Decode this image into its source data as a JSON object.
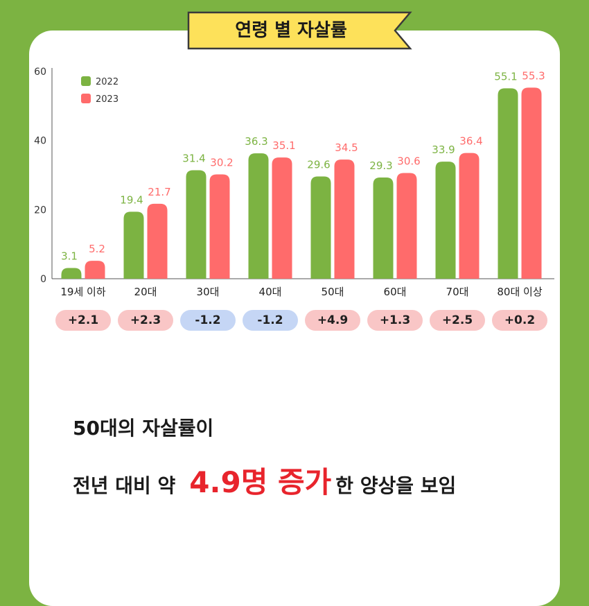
{
  "title": "연령 별 자살률",
  "chart_data": {
    "type": "bar",
    "categories": [
      "19세 이하",
      "20대",
      "30대",
      "40대",
      "50대",
      "60대",
      "70대",
      "80대 이상"
    ],
    "series": [
      {
        "name": "2022",
        "color": "#7cb342",
        "values": [
          3.1,
          19.4,
          31.4,
          36.3,
          29.6,
          29.3,
          33.9,
          55.1
        ]
      },
      {
        "name": "2023",
        "color": "#ff6b6b",
        "values": [
          5.2,
          21.7,
          30.2,
          35.1,
          34.5,
          30.6,
          36.4,
          55.3
        ]
      }
    ],
    "changes": [
      "+2.1",
      "+2.3",
      "-1.2",
      "-1.2",
      "+4.9",
      "+1.3",
      "+2.5",
      "+0.2"
    ],
    "change_colors": {
      "increase": "#f9c6c6",
      "decrease": "#c5d6f5"
    },
    "yticks": [
      "0",
      "20",
      "40",
      "60"
    ],
    "ylim": [
      0,
      60
    ],
    "legend_position": "top-left"
  },
  "caption": {
    "line1": "50대의 자살률이",
    "line2_prefix": "전년 대비 약",
    "line2_highlight": "4.9명 증가",
    "line2_suffix": "한 양상을 보임"
  }
}
